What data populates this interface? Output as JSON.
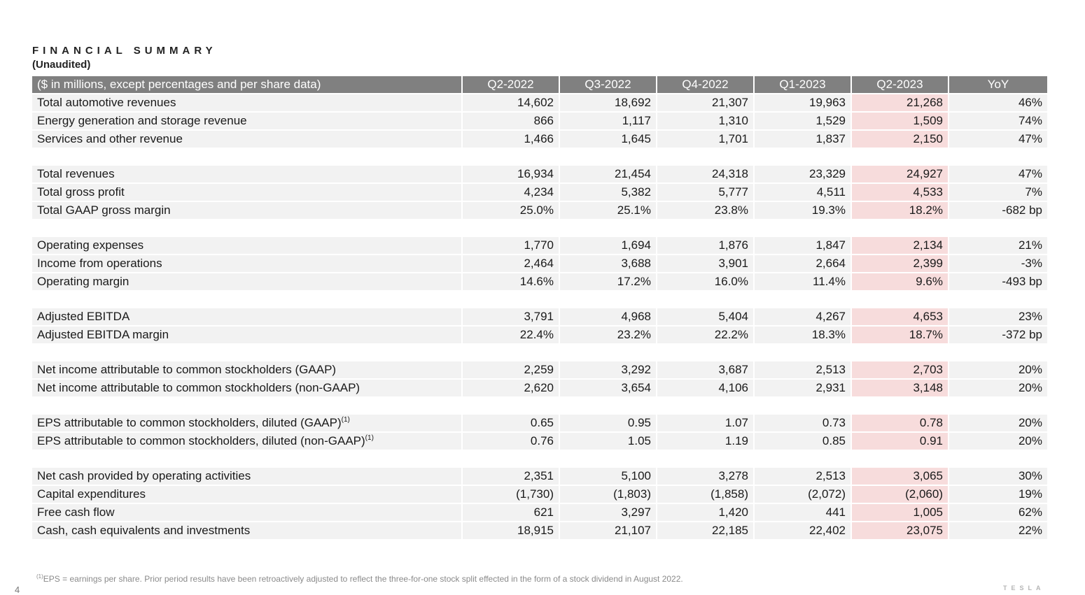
{
  "title": "FINANCIAL SUMMARY",
  "subtitle": "(Unaudited)",
  "table": {
    "header": {
      "label": "($ in millions, except percentages and per share data)",
      "columns": [
        "Q2-2022",
        "Q3-2022",
        "Q4-2022",
        "Q1-2023",
        "Q2-2023",
        "YoY"
      ]
    },
    "groups": [
      [
        {
          "label": "Total automotive revenues",
          "values": [
            "14,602",
            "18,692",
            "21,307",
            "19,963",
            "21,268",
            "46%"
          ]
        },
        {
          "label": "Energy generation and storage revenue",
          "values": [
            "866",
            "1,117",
            "1,310",
            "1,529",
            "1,509",
            "74%"
          ]
        },
        {
          "label": "Services and other revenue",
          "values": [
            "1,466",
            "1,645",
            "1,701",
            "1,837",
            "2,150",
            "47%"
          ]
        }
      ],
      [
        {
          "label": "Total revenues",
          "values": [
            "16,934",
            "21,454",
            "24,318",
            "23,329",
            "24,927",
            "47%"
          ]
        },
        {
          "label": "Total gross profit",
          "values": [
            "4,234",
            "5,382",
            "5,777",
            "4,511",
            "4,533",
            "7%"
          ]
        },
        {
          "label": "Total GAAP gross margin",
          "values": [
            "25.0%",
            "25.1%",
            "23.8%",
            "19.3%",
            "18.2%",
            "-682 bp"
          ]
        }
      ],
      [
        {
          "label": "Operating expenses",
          "values": [
            "1,770",
            "1,694",
            "1,876",
            "1,847",
            "2,134",
            "21%"
          ]
        },
        {
          "label": "Income from operations",
          "values": [
            "2,464",
            "3,688",
            "3,901",
            "2,664",
            "2,399",
            "-3%"
          ]
        },
        {
          "label": "Operating margin",
          "values": [
            "14.6%",
            "17.2%",
            "16.0%",
            "11.4%",
            "9.6%",
            "-493 bp"
          ]
        }
      ],
      [
        {
          "label": "Adjusted EBITDA",
          "values": [
            "3,791",
            "4,968",
            "5,404",
            "4,267",
            "4,653",
            "23%"
          ]
        },
        {
          "label": "Adjusted EBITDA margin",
          "values": [
            "22.4%",
            "23.2%",
            "22.2%",
            "18.3%",
            "18.7%",
            "-372 bp"
          ]
        }
      ],
      [
        {
          "label": "Net income attributable to common stockholders (GAAP)",
          "values": [
            "2,259",
            "3,292",
            "3,687",
            "2,513",
            "2,703",
            "20%"
          ]
        },
        {
          "label": "Net income attributable to common stockholders (non-GAAP)",
          "values": [
            "2,620",
            "3,654",
            "4,106",
            "2,931",
            "3,148",
            "20%"
          ]
        }
      ],
      [
        {
          "label": "EPS attributable to common stockholders, diluted (GAAP)",
          "sup": "(1)",
          "values": [
            "0.65",
            "0.95",
            "1.07",
            "0.73",
            "0.78",
            "20%"
          ]
        },
        {
          "label": "EPS attributable to common stockholders, diluted (non-GAAP)",
          "sup": "(1)",
          "values": [
            "0.76",
            "1.05",
            "1.19",
            "0.85",
            "0.91",
            "20%"
          ]
        }
      ],
      [
        {
          "label": "Net cash provided by operating activities",
          "values": [
            "2,351",
            "5,100",
            "3,278",
            "2,513",
            "3,065",
            "30%"
          ]
        },
        {
          "label": "Capital expenditures",
          "values": [
            "(1,730)",
            "(1,803)",
            "(1,858)",
            "(2,072)",
            "(2,060)",
            "19%"
          ]
        },
        {
          "label": "Free cash flow",
          "values": [
            "621",
            "3,297",
            "1,420",
            "441",
            "1,005",
            "62%"
          ]
        },
        {
          "label": "Cash, cash equivalents and investments",
          "values": [
            "18,915",
            "21,107",
            "22,185",
            "22,402",
            "23,075",
            "22%"
          ]
        }
      ]
    ],
    "highlight_column_index": 4,
    "highlight_color": "#f7dcdc",
    "header_color": "#808080"
  },
  "footnote": {
    "marker": "(1)",
    "text": "EPS = earnings per share. Prior period results have been retroactively adjusted to reflect the three-for-one stock split effected in the form of a stock dividend in August 2022."
  },
  "page_number": "4",
  "logo_text": "TESLA"
}
